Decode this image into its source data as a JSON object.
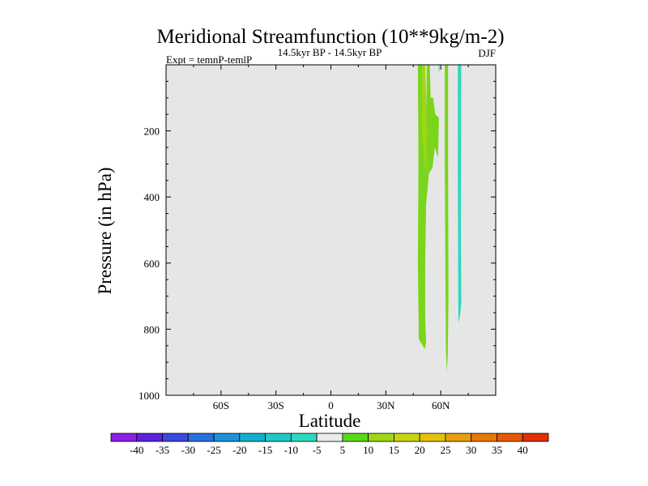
{
  "chart_data": {
    "type": "contour",
    "title": "Meridional Streamfunction (10**9kg/m-2)",
    "left_label": "Expt = temnP-temlP",
    "center_label": "14.5kyr BP - 14.5kyr BP",
    "right_label": "DJF",
    "xlabel": "Latitude",
    "ylabel": "Pressure (in hPa)",
    "xlim": [
      -90,
      90
    ],
    "ylim": [
      0,
      1000
    ],
    "y_inverted": true,
    "x_ticks": [
      -60,
      -30,
      0,
      30,
      60
    ],
    "x_tick_labels": [
      "60S",
      "30S",
      "0",
      "30N",
      "60N"
    ],
    "y_ticks": [
      200,
      400,
      600,
      800,
      1000
    ],
    "y_tick_labels": [
      "200",
      "400",
      "600",
      "800",
      "1000"
    ],
    "background_color": "#e6e6e6",
    "filled_regions": [
      {
        "name": "band-lat49",
        "level": "5 to 10",
        "color": "#7ad51c",
        "points": [
          [
            47.5,
            0
          ],
          [
            50.5,
            0
          ],
          [
            51,
            200
          ],
          [
            53.5,
            330
          ],
          [
            52,
            420
          ],
          [
            51.5,
            600
          ],
          [
            51.5,
            760
          ],
          [
            52,
            840
          ],
          [
            51.3,
            860
          ],
          [
            48,
            830
          ],
          [
            47.5,
            600
          ],
          [
            47.8,
            300
          ]
        ]
      },
      {
        "name": "band-lat52",
        "level": "5 to 10",
        "color": "#7ad51c",
        "points": [
          [
            52.3,
            0
          ],
          [
            54,
            0
          ],
          [
            54.5,
            100
          ],
          [
            55.8,
            100
          ],
          [
            57,
            150
          ],
          [
            59,
            160
          ],
          [
            58.5,
            280
          ],
          [
            56.8,
            250
          ],
          [
            55.5,
            310
          ],
          [
            53.5,
            330
          ],
          [
            52,
            250
          ]
        ]
      },
      {
        "name": "band-lat50-inner",
        "level": "10 to 15",
        "color": "#9fd716",
        "points": [
          [
            49.5,
            0
          ],
          [
            51.5,
            0
          ],
          [
            52.5,
            200
          ],
          [
            52,
            330
          ],
          [
            51,
            280
          ],
          [
            49.8,
            200
          ]
        ]
      },
      {
        "name": "band-lat63",
        "level": "5 to 10",
        "color": "#7ad51c",
        "points": [
          [
            62.2,
            0
          ],
          [
            64,
            0
          ],
          [
            64,
            300
          ],
          [
            64.2,
            700
          ],
          [
            63.8,
            880
          ],
          [
            63.3,
            930
          ],
          [
            62.8,
            860
          ],
          [
            62.5,
            600
          ],
          [
            62.2,
            300
          ]
        ]
      },
      {
        "name": "band-lat70",
        "level": "-5 to 5",
        "color": "#2bd9bf",
        "points": [
          [
            69.3,
            0
          ],
          [
            71.2,
            0
          ],
          [
            71.1,
            200
          ],
          [
            71,
            500
          ],
          [
            71.2,
            720
          ],
          [
            70.5,
            760
          ],
          [
            69.6,
            780
          ],
          [
            69.5,
            600
          ],
          [
            69.3,
            300
          ]
        ]
      },
      {
        "name": "line-lat59",
        "level": "-5 to 5",
        "color": "#2bd9bf",
        "points": [
          [
            58.8,
            0
          ],
          [
            59.3,
            0
          ],
          [
            59.2,
            20
          ],
          [
            58.9,
            20
          ]
        ]
      }
    ],
    "colorbar": {
      "labels": [
        "-40",
        "-35",
        "-30",
        "-25",
        "-20",
        "-15",
        "-10",
        "-5",
        "5",
        "10",
        "15",
        "20",
        "25",
        "30",
        "35",
        "40"
      ],
      "colors": [
        "#8a1ee6",
        "#5a22e0",
        "#3a4ade",
        "#2a70dc",
        "#1e92d6",
        "#12b0d0",
        "#1ec8c8",
        "#2bd9bf",
        "#ebebeb",
        "#5ad81a",
        "#9fd716",
        "#c8d412",
        "#e2c20e",
        "#e6a00a",
        "#e67a08",
        "#e45a06",
        "#e03004"
      ]
    }
  }
}
